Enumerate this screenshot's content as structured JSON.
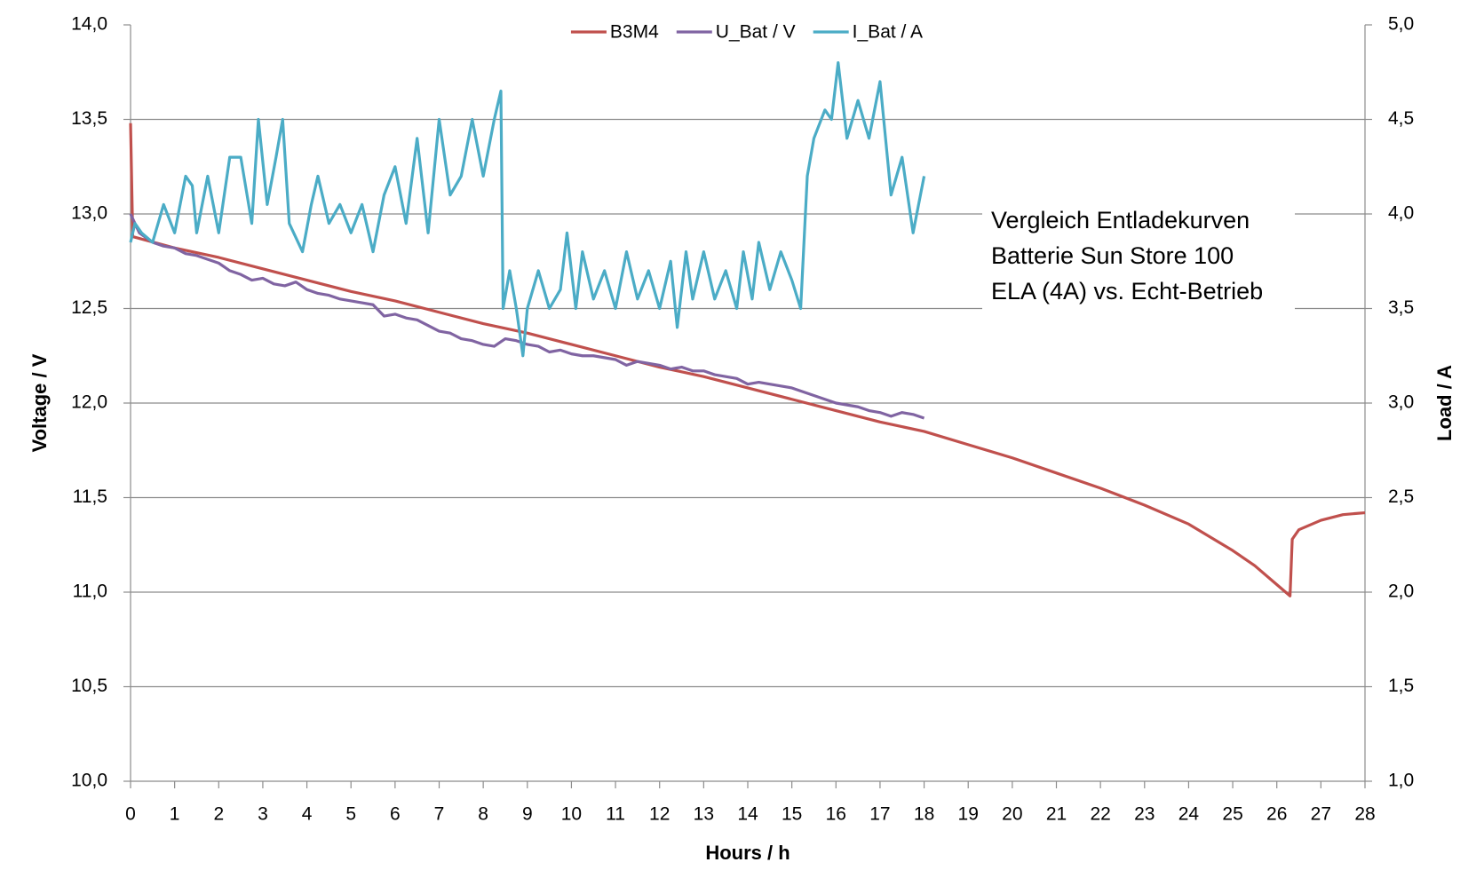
{
  "chart_data": {
    "type": "line",
    "xlabel": "Hours / h",
    "ylabel": "Voltage / V",
    "y2label": "Load / A",
    "annotation": [
      "Vergleich Entladekurven",
      "Batterie Sun Store 100",
      "ELA (4A) vs. Echt-Betrieb"
    ],
    "grid": true,
    "legend": "top",
    "xlim": [
      0,
      28
    ],
    "xticks": [
      0,
      1,
      2,
      3,
      4,
      5,
      6,
      7,
      8,
      9,
      10,
      11,
      12,
      13,
      14,
      15,
      16,
      17,
      18,
      19,
      20,
      21,
      22,
      23,
      24,
      25,
      26,
      27,
      28
    ],
    "ylim": [
      10,
      14
    ],
    "yticks": [
      {
        "value": 10,
        "label": "10,0"
      },
      {
        "value": 10.5,
        "label": "10,5"
      },
      {
        "value": 11,
        "label": "11,0"
      },
      {
        "value": 11.5,
        "label": "11,5"
      },
      {
        "value": 12,
        "label": "12,0"
      },
      {
        "value": 12.5,
        "label": "12,5"
      },
      {
        "value": 13,
        "label": "13,0"
      },
      {
        "value": 13.5,
        "label": "13,5"
      },
      {
        "value": 14,
        "label": "14,0"
      }
    ],
    "y2lim": [
      1,
      5
    ],
    "y2ticks": [
      {
        "value": 1,
        "label": "1,0"
      },
      {
        "value": 1.5,
        "label": "1,5"
      },
      {
        "value": 2,
        "label": "2,0"
      },
      {
        "value": 2.5,
        "label": "2,5"
      },
      {
        "value": 3,
        "label": "3,0"
      },
      {
        "value": 3.5,
        "label": "3,5"
      },
      {
        "value": 4,
        "label": "4,0"
      },
      {
        "value": 4.5,
        "label": "4,5"
      },
      {
        "value": 5,
        "label": "5,0"
      }
    ],
    "series": [
      {
        "name": "B3M4",
        "color": "#c0504d",
        "axis": "y",
        "x": [
          0,
          0.05,
          1,
          2,
          3,
          4,
          5,
          6,
          7,
          8,
          9,
          10,
          11,
          12,
          13,
          14,
          15,
          16,
          17,
          18,
          19,
          20,
          21,
          22,
          23,
          24,
          25,
          25.5,
          26,
          26.3,
          26.35,
          26.5,
          27,
          27.5,
          28
        ],
        "values": [
          13.48,
          12.88,
          12.82,
          12.77,
          12.71,
          12.65,
          12.59,
          12.54,
          12.48,
          12.42,
          12.37,
          12.31,
          12.25,
          12.19,
          12.14,
          12.08,
          12.02,
          11.96,
          11.9,
          11.85,
          11.78,
          11.71,
          11.63,
          11.55,
          11.46,
          11.36,
          11.22,
          11.14,
          11.04,
          10.98,
          11.28,
          11.33,
          11.38,
          11.41,
          11.42
        ]
      },
      {
        "name": "U_Bat / V",
        "color": "#8064a2",
        "axis": "y",
        "x": [
          0,
          0.2,
          0.5,
          0.75,
          1,
          1.25,
          1.5,
          1.75,
          2,
          2.25,
          2.5,
          2.75,
          3,
          3.25,
          3.5,
          3.75,
          4,
          4.25,
          4.5,
          4.75,
          5,
          5.25,
          5.5,
          5.75,
          6,
          6.25,
          6.5,
          6.75,
          7,
          7.25,
          7.5,
          7.75,
          8,
          8.25,
          8.5,
          8.75,
          9,
          9.25,
          9.5,
          9.75,
          10,
          10.25,
          10.5,
          10.75,
          11,
          11.25,
          11.5,
          11.75,
          12,
          12.25,
          12.5,
          12.75,
          13,
          13.25,
          13.5,
          13.75,
          14,
          14.25,
          14.5,
          14.75,
          15,
          15.25,
          15.5,
          15.75,
          16,
          16.25,
          16.5,
          16.75,
          17,
          17.25,
          17.5,
          17.75,
          18
        ],
        "values": [
          13.0,
          12.9,
          12.85,
          12.83,
          12.82,
          12.79,
          12.78,
          12.76,
          12.74,
          12.7,
          12.68,
          12.65,
          12.66,
          12.63,
          12.62,
          12.64,
          12.6,
          12.58,
          12.57,
          12.55,
          12.54,
          12.53,
          12.52,
          12.46,
          12.47,
          12.45,
          12.44,
          12.41,
          12.38,
          12.37,
          12.34,
          12.33,
          12.31,
          12.3,
          12.34,
          12.33,
          12.31,
          12.3,
          12.27,
          12.28,
          12.26,
          12.25,
          12.25,
          12.24,
          12.23,
          12.2,
          12.22,
          12.21,
          12.2,
          12.18,
          12.19,
          12.17,
          12.17,
          12.15,
          12.14,
          12.13,
          12.1,
          12.11,
          12.1,
          12.09,
          12.08,
          12.06,
          12.04,
          12.02,
          12.0,
          11.99,
          11.98,
          11.96,
          11.95,
          11.93,
          11.95,
          11.94,
          11.92
        ]
      },
      {
        "name": "I_Bat / A",
        "color": "#4bacc6",
        "axis": "y2",
        "x": [
          0,
          0.1,
          0.25,
          0.5,
          0.75,
          1,
          1.25,
          1.4,
          1.5,
          1.75,
          2,
          2.25,
          2.5,
          2.75,
          2.9,
          3.1,
          3.3,
          3.45,
          3.6,
          3.9,
          4.1,
          4.25,
          4.5,
          4.75,
          5,
          5.25,
          5.5,
          5.75,
          6,
          6.25,
          6.5,
          6.75,
          7,
          7.25,
          7.5,
          7.75,
          8,
          8.25,
          8.4,
          8.45,
          8.6,
          8.75,
          8.9,
          9,
          9.25,
          9.5,
          9.75,
          9.9,
          10.1,
          10.25,
          10.5,
          10.75,
          11,
          11.25,
          11.5,
          11.75,
          12,
          12.25,
          12.4,
          12.6,
          12.75,
          13,
          13.25,
          13.5,
          13.75,
          13.9,
          14.1,
          14.25,
          14.5,
          14.75,
          15,
          15.2,
          15.35,
          15.5,
          15.75,
          15.9,
          16.05,
          16.25,
          16.5,
          16.75,
          17,
          17.25,
          17.5,
          17.75,
          18
        ],
        "values": [
          3.85,
          3.95,
          3.9,
          3.85,
          4.05,
          3.9,
          4.2,
          4.15,
          3.9,
          4.2,
          3.9,
          4.3,
          4.3,
          3.95,
          4.5,
          4.05,
          4.3,
          4.5,
          3.95,
          3.8,
          4.05,
          4.2,
          3.95,
          4.05,
          3.9,
          4.05,
          3.8,
          4.1,
          4.25,
          3.95,
          4.4,
          3.9,
          4.5,
          4.1,
          4.2,
          4.5,
          4.2,
          4.5,
          4.65,
          3.5,
          3.7,
          3.5,
          3.25,
          3.5,
          3.7,
          3.5,
          3.6,
          3.9,
          3.5,
          3.8,
          3.55,
          3.7,
          3.5,
          3.8,
          3.55,
          3.7,
          3.5,
          3.75,
          3.4,
          3.8,
          3.55,
          3.8,
          3.55,
          3.7,
          3.5,
          3.8,
          3.55,
          3.85,
          3.6,
          3.8,
          3.65,
          3.5,
          4.2,
          4.4,
          4.55,
          4.5,
          4.8,
          4.4,
          4.6,
          4.4,
          4.7,
          4.1,
          4.3,
          3.9,
          4.2
        ]
      }
    ]
  }
}
